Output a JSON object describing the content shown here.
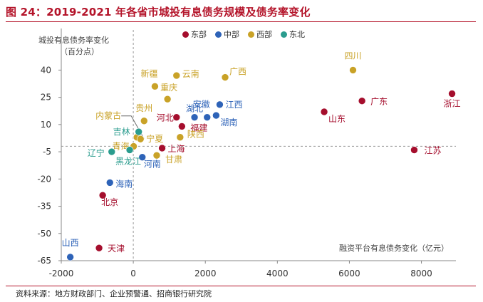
{
  "header": {
    "title": "图 24：2019-2021 年各省市城投有息债务规模及债务率变化",
    "source": "资料来源：地方财政部门、企业预警通、招商银行研究院"
  },
  "colors": {
    "title": "#b4142a",
    "东部": "#a50e2d",
    "中部": "#2e63b8",
    "西部": "#c9a227",
    "东北": "#2a9c8e"
  },
  "chart_data": {
    "type": "scatter",
    "title": "图 24：2019-2021 年各省市城投有息债务规模及债务率变化",
    "xlabel": "融资平台有息债务变化（亿元）",
    "ylabel_line1": "城投有息债务率变化",
    "ylabel_line2": "（百分点）",
    "xlim": [
      -2000,
      8800
    ],
    "ylim": [
      -65,
      48
    ],
    "xticks": [
      -2000,
      0,
      2000,
      4000,
      6000,
      8000
    ],
    "yticks": [
      -65,
      -50,
      -35,
      -20,
      -5,
      10,
      25,
      40
    ],
    "ref_lines": {
      "x": 0,
      "y": -2
    },
    "legend": [
      "东部",
      "中部",
      "西部",
      "东北"
    ],
    "points": [
      {
        "name": "浙江",
        "region": "东部",
        "x": 8850,
        "y": 27
      },
      {
        "name": "江苏",
        "region": "东部",
        "x": 7800,
        "y": -4
      },
      {
        "name": "广东",
        "region": "东部",
        "x": 6350,
        "y": 23
      },
      {
        "name": "山东",
        "region": "东部",
        "x": 5300,
        "y": 17
      },
      {
        "name": "河北",
        "region": "东部",
        "x": 1200,
        "y": 14
      },
      {
        "name": "福建",
        "region": "东部",
        "x": 1350,
        "y": 9
      },
      {
        "name": "上海",
        "region": "东部",
        "x": 800,
        "y": -3
      },
      {
        "name": "北京",
        "region": "东部",
        "x": -850,
        "y": -29
      },
      {
        "name": "天津",
        "region": "东部",
        "x": -950,
        "y": -58
      },
      {
        "name": "湖北",
        "region": "中部",
        "x": 1700,
        "y": 14
      },
      {
        "name": "安徽",
        "region": "中部",
        "x": 2050,
        "y": 14
      },
      {
        "name": "江西",
        "region": "中部",
        "x": 2400,
        "y": 21
      },
      {
        "name": "湖南",
        "region": "中部",
        "x": 2300,
        "y": 15
      },
      {
        "name": "河南",
        "region": "中部",
        "x": 250,
        "y": -8
      },
      {
        "name": "海南",
        "region": "中部",
        "x": -650,
        "y": -22
      },
      {
        "name": "山西",
        "region": "中部",
        "x": -1750,
        "y": -63
      },
      {
        "name": "广西",
        "region": "西部",
        "x": 2550,
        "y": 36
      },
      {
        "name": "四川",
        "region": "西部",
        "x": 6100,
        "y": 40
      },
      {
        "name": "云南",
        "region": "西部",
        "x": 1200,
        "y": 37
      },
      {
        "name": "新疆",
        "region": "西部",
        "x": 600,
        "y": 31
      },
      {
        "name": "重庆",
        "region": "西部",
        "x": 950,
        "y": 24
      },
      {
        "name": "贵州",
        "region": "西部",
        "x": 300,
        "y": 12
      },
      {
        "name": "陕西",
        "region": "西部",
        "x": 1300,
        "y": 3
      },
      {
        "name": "内蒙古",
        "region": "西部",
        "x": 100,
        "y": 3
      },
      {
        "name": "宁夏",
        "region": "西部",
        "x": 200,
        "y": 2
      },
      {
        "name": "青海",
        "region": "西部",
        "x": 10,
        "y": -2
      },
      {
        "name": "甘肃",
        "region": "西部",
        "x": 650,
        "y": -7
      },
      {
        "name": "吉林",
        "region": "东北",
        "x": 150,
        "y": 6
      },
      {
        "name": "黑龙江",
        "region": "东北",
        "x": -100,
        "y": -4
      },
      {
        "name": "辽宁",
        "region": "东北",
        "x": -600,
        "y": -5
      }
    ]
  }
}
